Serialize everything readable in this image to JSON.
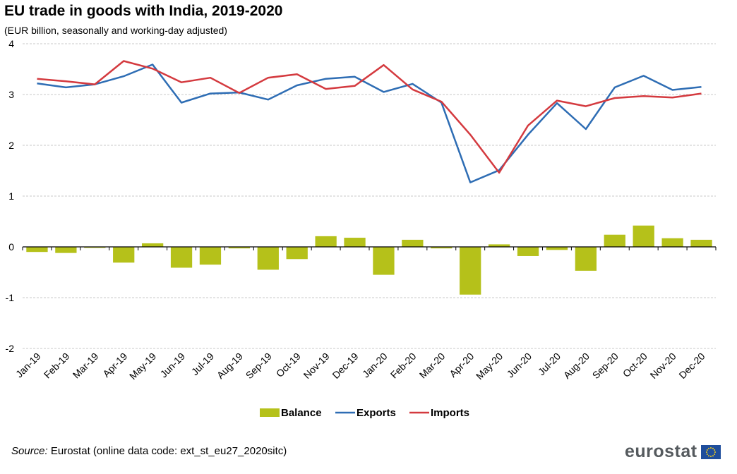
{
  "header": {
    "title": "EU trade in goods with India, 2019-2020",
    "subtitle": "(EUR billion, seasonally and working-day adjusted)"
  },
  "footer": {
    "source_label": "Source:",
    "source_text": " Eurostat (online data code: ext_st_eu27_2020sitc)",
    "logo_text": "eurostat"
  },
  "colors": {
    "balance": "#b5c11a",
    "exports": "#2e6db4",
    "imports": "#d43a3f",
    "grid": "#c8c8c8"
  },
  "chart_data": {
    "type": "bar",
    "title": "EU trade in goods with India, 2019-2020",
    "subtitle": "(EUR billion, seasonally and working-day adjusted)",
    "categories": [
      "Jan-19",
      "Feb-19",
      "Mar-19",
      "Apr-19",
      "May-19",
      "Jun-19",
      "Jul-19",
      "Aug-19",
      "Sep-19",
      "Oct-19",
      "Nov-19",
      "Dec-19",
      "Jan-20",
      "Feb-20",
      "Mar-20",
      "Apr-20",
      "May-20",
      "Jun-20",
      "Jul-20",
      "Aug-20",
      "Sep-20",
      "Oct-20",
      "Nov-20",
      "Dec-20"
    ],
    "ylim": [
      -2,
      4
    ],
    "yticks": [
      -2,
      -1,
      0,
      1,
      2,
      3,
      4
    ],
    "grid": true,
    "legend_position": "bottom",
    "series": [
      {
        "name": "Balance",
        "type": "bar",
        "values": [
          -0.1,
          -0.12,
          -0.02,
          -0.31,
          0.07,
          -0.41,
          -0.35,
          -0.03,
          -0.45,
          -0.24,
          0.21,
          0.18,
          -0.55,
          0.14,
          -0.03,
          -0.94,
          0.05,
          -0.18,
          -0.06,
          -0.47,
          0.24,
          0.42,
          0.17,
          0.14
        ]
      },
      {
        "name": "Exports",
        "type": "line",
        "values": [
          3.22,
          3.14,
          3.2,
          3.36,
          3.59,
          2.84,
          3.02,
          3.04,
          2.9,
          3.18,
          3.31,
          3.35,
          3.05,
          3.21,
          2.84,
          1.27,
          1.51,
          2.21,
          2.83,
          2.32,
          3.14,
          3.37,
          3.09,
          3.15
        ]
      },
      {
        "name": "Imports",
        "type": "line",
        "values": [
          3.31,
          3.26,
          3.2,
          3.66,
          3.51,
          3.24,
          3.33,
          3.03,
          3.33,
          3.4,
          3.11,
          3.17,
          3.58,
          3.1,
          2.86,
          2.21,
          1.46,
          2.39,
          2.88,
          2.77,
          2.93,
          2.97,
          2.94,
          3.02
        ]
      }
    ]
  }
}
